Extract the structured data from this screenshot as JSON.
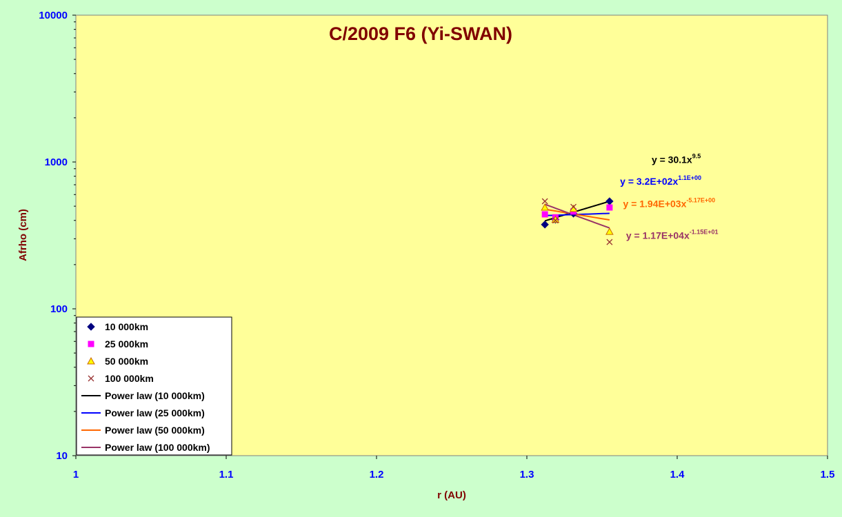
{
  "chart_data": {
    "type": "scatter",
    "title": "C/2009 F6 (Yi-SWAN)",
    "xlabel": "r (AU)",
    "ylabel": "Afrho (cm)",
    "xlim": [
      1,
      1.5
    ],
    "ylim": [
      10,
      10000
    ],
    "yscale": "log",
    "grid": false,
    "x_ticks": [
      "1",
      "1.1",
      "1.2",
      "1.3",
      "1.4",
      "1.5"
    ],
    "y_ticks": [
      "10",
      "100",
      "1000",
      "10000"
    ],
    "legend_position": "bottom-left",
    "series": [
      {
        "name": "10 000km",
        "marker": "diamond",
        "color": "#000080",
        "x": [
          1.312,
          1.319,
          1.331,
          1.355
        ],
        "y": [
          375,
          405,
          445,
          540
        ]
      },
      {
        "name": "25 000km",
        "marker": "square",
        "color": "#ff00ff",
        "x": [
          1.312,
          1.319,
          1.331,
          1.355
        ],
        "y": [
          440,
          420,
          460,
          490
        ]
      },
      {
        "name": "50 000km",
        "marker": "triangle",
        "color": "#ffff00",
        "x": [
          1.312,
          1.319,
          1.331,
          1.355
        ],
        "y": [
          490,
          405,
          480,
          335
        ]
      },
      {
        "name": "100 000km",
        "marker": "x",
        "color": "#993333",
        "x": [
          1.312,
          1.319,
          1.331,
          1.355
        ],
        "y": [
          540,
          400,
          495,
          285
        ]
      }
    ],
    "trendlines": [
      {
        "name": "Power law (10 000km)",
        "color": "#000000",
        "coef": 30.1,
        "exp": 9.5,
        "eq_text": "y = 30.1x",
        "eq_exp": "9.5",
        "label_x": 1.383,
        "label_y": 985
      },
      {
        "name": "Power law (25 000km)",
        "color": "#0000ff",
        "coef": 320,
        "exp": 1.1,
        "eq_text": "y = 3.2E+02x",
        "eq_exp": "1.1E+00",
        "label_x": 1.362,
        "label_y": 700
      },
      {
        "name": "Power law (50 000km)",
        "color": "#ff6600",
        "coef": 1940,
        "exp": -5.17,
        "eq_text": "y = 1.94E+03x",
        "eq_exp": "-5.17E+00",
        "label_x": 1.364,
        "label_y": 493
      },
      {
        "name": "Power law (100 000km)",
        "color": "#993366",
        "coef": 11700,
        "exp": -11.5,
        "eq_text": "y = 1.17E+04x",
        "eq_exp": "-1.15E+01",
        "label_x": 1.366,
        "label_y": 300
      }
    ]
  },
  "colors": {
    "outer_background": "#ccffcc",
    "plot_background": "#ffff99",
    "title": "#800000",
    "axis_label": "#800000",
    "tick_label": "#0000ff"
  }
}
